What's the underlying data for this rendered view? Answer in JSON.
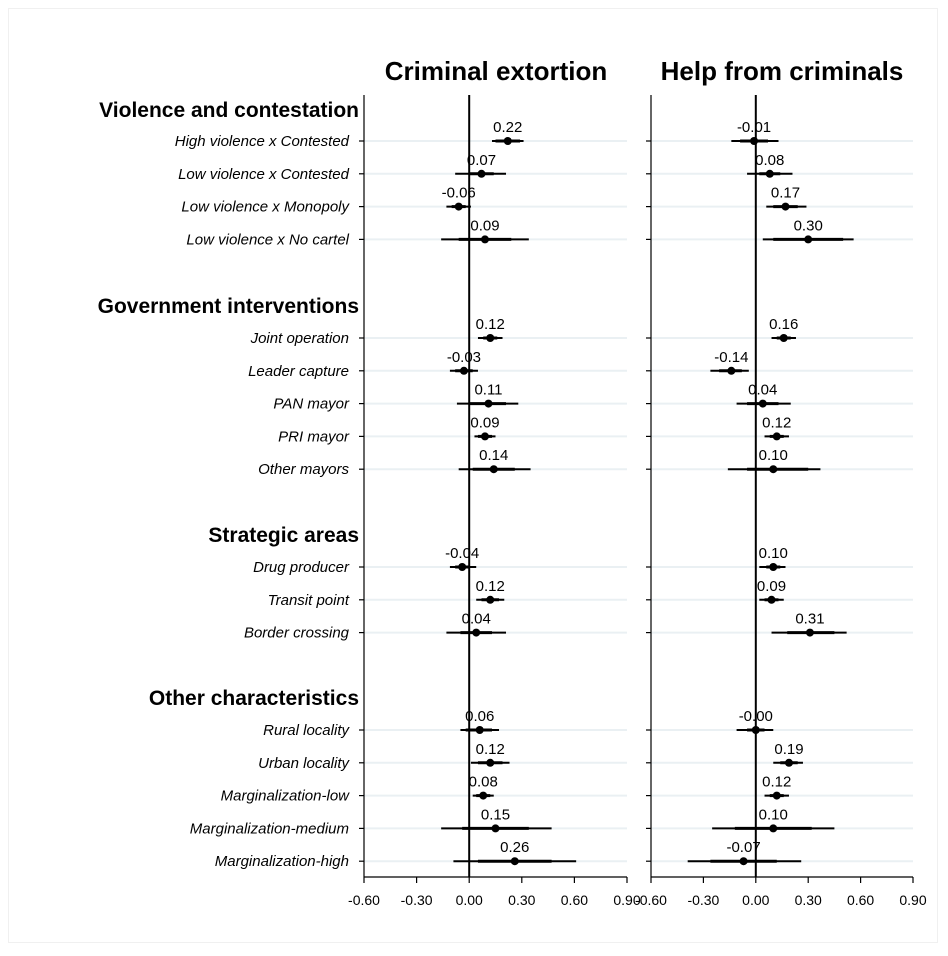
{
  "chart_data": {
    "type": "scatter",
    "subtype": "coefficient-plot",
    "xlim": [
      -0.6,
      0.9
    ],
    "xticks": [
      "-0.60",
      "-0.30",
      "0.00",
      "0.30",
      "0.60",
      "0.90"
    ],
    "xtick_values": [
      -0.6,
      -0.3,
      0,
      0.3,
      0.6,
      0.9
    ],
    "reference_line": 0,
    "grid": true,
    "groups": [
      {
        "title": "Violence and contestation",
        "rows": [
          "High violence x Contested",
          "Low violence x Contested",
          "Low violence x Monopoly",
          "Low violence x No cartel"
        ]
      },
      {
        "title": "Government interventions",
        "rows": [
          "Joint operation",
          "Leader capture",
          "PAN mayor",
          "PRI mayor",
          "Other mayors"
        ]
      },
      {
        "title": "Strategic areas",
        "rows": [
          "Drug producer",
          "Transit point",
          "Border crossing"
        ]
      },
      {
        "title": "Other characteristics",
        "rows": [
          "Rural locality",
          "Urban locality",
          "Marginalization-low",
          "Marginalization-medium",
          "Marginalization-high"
        ]
      }
    ],
    "panels": [
      {
        "title": "Criminal extortion",
        "series": [
          {
            "label": "0.22",
            "value": 0.22,
            "ci90": [
              0.15,
              0.29
            ],
            "ci95": [
              0.13,
              0.31
            ]
          },
          {
            "label": "0.07",
            "value": 0.07,
            "ci90": [
              0.0,
              0.14
            ],
            "ci95": [
              -0.08,
              0.21
            ]
          },
          {
            "label": "-0.06",
            "value": -0.06,
            "ci90": [
              -0.1,
              -0.02
            ],
            "ci95": [
              -0.13,
              0.01
            ]
          },
          {
            "label": "0.09",
            "value": 0.09,
            "ci90": [
              -0.06,
              0.24
            ],
            "ci95": [
              -0.16,
              0.34
            ]
          },
          {
            "label": "0.12",
            "value": 0.12,
            "ci90": [
              0.08,
              0.16
            ],
            "ci95": [
              0.05,
              0.19
            ]
          },
          {
            "label": "-0.03",
            "value": -0.03,
            "ci90": [
              -0.08,
              0.02
            ],
            "ci95": [
              -0.11,
              0.05
            ]
          },
          {
            "label": "0.11",
            "value": 0.11,
            "ci90": [
              0.0,
              0.21
            ],
            "ci95": [
              -0.07,
              0.28
            ]
          },
          {
            "label": "0.09",
            "value": 0.09,
            "ci90": [
              0.05,
              0.13
            ],
            "ci95": [
              0.03,
              0.15
            ]
          },
          {
            "label": "0.14",
            "value": 0.14,
            "ci90": [
              0.02,
              0.26
            ],
            "ci95": [
              -0.06,
              0.35
            ]
          },
          {
            "label": "-0.04",
            "value": -0.04,
            "ci90": [
              -0.08,
              0.0
            ],
            "ci95": [
              -0.11,
              0.04
            ]
          },
          {
            "label": "0.12",
            "value": 0.12,
            "ci90": [
              0.07,
              0.17
            ],
            "ci95": [
              0.04,
              0.2
            ]
          },
          {
            "label": "0.04",
            "value": 0.04,
            "ci90": [
              -0.05,
              0.13
            ],
            "ci95": [
              -0.13,
              0.21
            ]
          },
          {
            "label": "0.06",
            "value": 0.06,
            "ci90": [
              -0.02,
              0.13
            ],
            "ci95": [
              -0.05,
              0.17
            ]
          },
          {
            "label": "0.12",
            "value": 0.12,
            "ci90": [
              0.05,
              0.19
            ],
            "ci95": [
              0.01,
              0.23
            ]
          },
          {
            "label": "0.08",
            "value": 0.08,
            "ci90": [
              0.04,
              0.12
            ],
            "ci95": [
              0.02,
              0.14
            ]
          },
          {
            "label": "0.15",
            "value": 0.15,
            "ci90": [
              -0.04,
              0.34
            ],
            "ci95": [
              -0.16,
              0.47
            ]
          },
          {
            "label": "0.26",
            "value": 0.26,
            "ci90": [
              0.05,
              0.47
            ],
            "ci95": [
              -0.09,
              0.61
            ]
          }
        ]
      },
      {
        "title": "Help from criminals",
        "series": [
          {
            "label": "-0.01",
            "value": -0.01,
            "ci90": [
              -0.09,
              0.07
            ],
            "ci95": [
              -0.14,
              0.13
            ]
          },
          {
            "label": "0.08",
            "value": 0.08,
            "ci90": [
              0.02,
              0.14
            ],
            "ci95": [
              -0.05,
              0.21
            ]
          },
          {
            "label": "0.17",
            "value": 0.17,
            "ci90": [
              0.1,
              0.24
            ],
            "ci95": [
              0.06,
              0.29
            ]
          },
          {
            "label": "0.30",
            "value": 0.3,
            "ci90": [
              0.1,
              0.5
            ],
            "ci95": [
              0.04,
              0.56
            ]
          },
          {
            "label": "0.16",
            "value": 0.16,
            "ci90": [
              0.12,
              0.2
            ],
            "ci95": [
              0.09,
              0.23
            ]
          },
          {
            "label": "-0.14",
            "value": -0.14,
            "ci90": [
              -0.21,
              -0.08
            ],
            "ci95": [
              -0.26,
              -0.04
            ]
          },
          {
            "label": "0.04",
            "value": 0.04,
            "ci90": [
              -0.05,
              0.13
            ],
            "ci95": [
              -0.11,
              0.2
            ]
          },
          {
            "label": "0.12",
            "value": 0.12,
            "ci90": [
              0.08,
              0.16
            ],
            "ci95": [
              0.05,
              0.19
            ]
          },
          {
            "label": "0.10",
            "value": 0.1,
            "ci90": [
              -0.05,
              0.3
            ],
            "ci95": [
              -0.16,
              0.37
            ]
          },
          {
            "label": "0.10",
            "value": 0.1,
            "ci90": [
              0.06,
              0.14
            ],
            "ci95": [
              0.02,
              0.17
            ]
          },
          {
            "label": "0.09",
            "value": 0.09,
            "ci90": [
              0.05,
              0.13
            ],
            "ci95": [
              0.02,
              0.16
            ]
          },
          {
            "label": "0.31",
            "value": 0.31,
            "ci90": [
              0.18,
              0.45
            ],
            "ci95": [
              0.09,
              0.52
            ]
          },
          {
            "label": "-0.00",
            "value": 0.0,
            "ci90": [
              -0.05,
              0.05
            ],
            "ci95": [
              -0.11,
              0.1
            ]
          },
          {
            "label": "0.19",
            "value": 0.19,
            "ci90": [
              0.14,
              0.24
            ],
            "ci95": [
              0.1,
              0.27
            ]
          },
          {
            "label": "0.12",
            "value": 0.12,
            "ci90": [
              0.08,
              0.16
            ],
            "ci95": [
              0.05,
              0.19
            ]
          },
          {
            "label": "0.10",
            "value": 0.1,
            "ci90": [
              -0.12,
              0.32
            ],
            "ci95": [
              -0.25,
              0.45
            ]
          },
          {
            "label": "-0.07",
            "value": -0.07,
            "ci90": [
              -0.26,
              0.12
            ],
            "ci95": [
              -0.39,
              0.26
            ]
          }
        ]
      }
    ]
  }
}
